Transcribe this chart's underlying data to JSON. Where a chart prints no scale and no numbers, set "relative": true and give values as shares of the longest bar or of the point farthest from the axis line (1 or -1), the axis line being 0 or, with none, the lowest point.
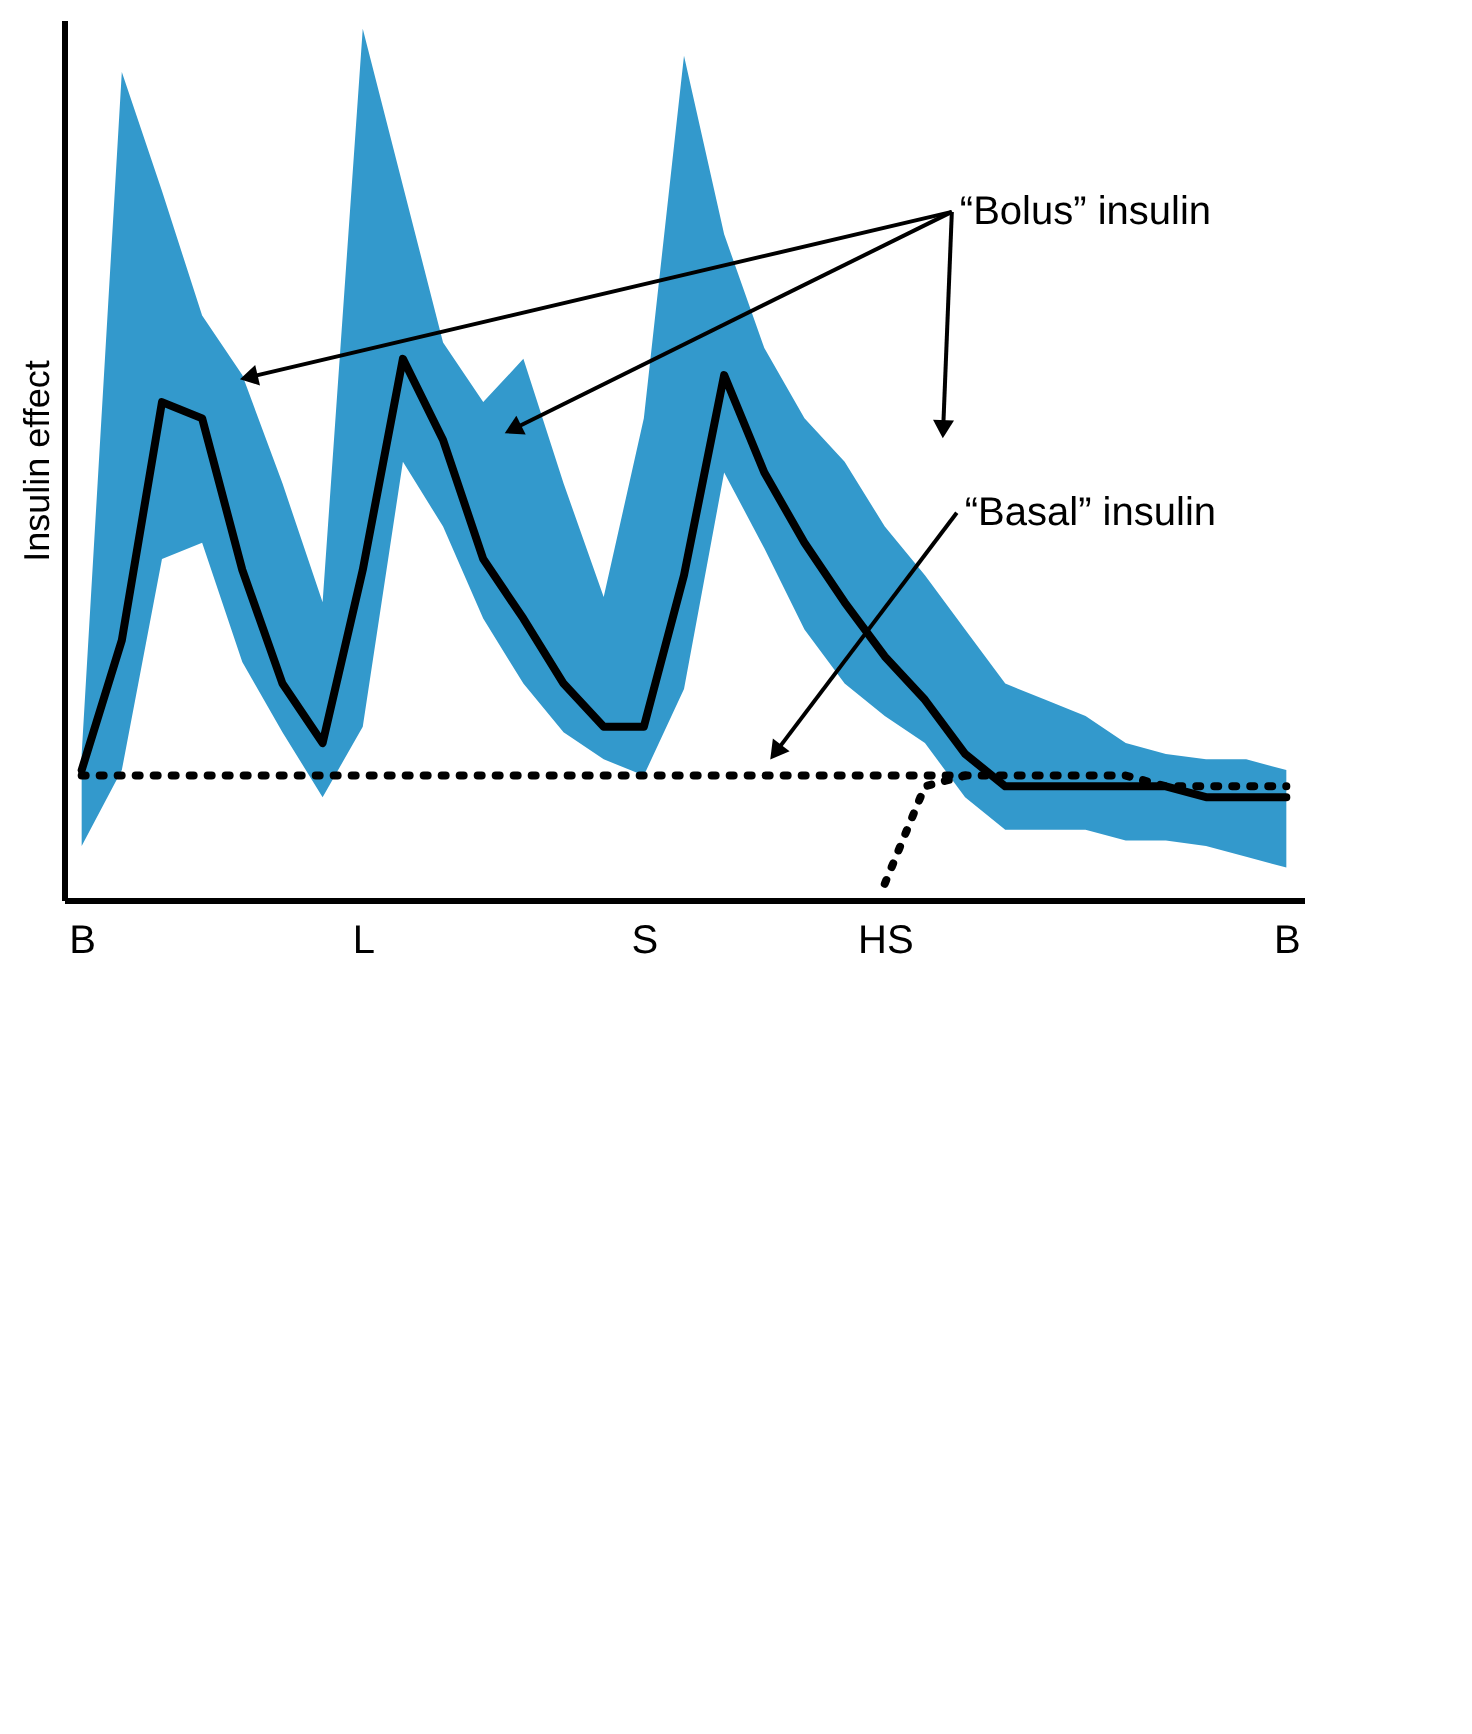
{
  "chart_data": {
    "type": "line",
    "relative": true,
    "ylabel": "Insulin effect",
    "categories": [
      "B",
      null,
      null,
      null,
      null,
      null,
      null,
      "L",
      null,
      null,
      null,
      null,
      null,
      null,
      "S",
      null,
      null,
      null,
      null,
      null,
      "HS",
      null,
      null,
      null,
      null,
      null,
      null,
      null,
      null,
      null,
      "B"
    ],
    "marker": "none",
    "series": [
      {
        "line_style": "solid",
        "color": "#000000",
        "values": [
          0.24,
          0.48,
          0.92,
          0.89,
          0.61,
          0.4,
          0.29,
          0.61,
          1.0,
          0.85,
          0.63,
          0.52,
          0.4,
          0.32,
          0.32,
          0.6,
          0.97,
          0.79,
          0.66,
          0.55,
          0.45,
          0.37,
          0.27,
          0.21,
          0.21,
          0.21,
          0.21,
          0.21,
          0.19,
          0.19,
          0.19
        ],
        "upper": [
          0.27,
          1.53,
          1.31,
          1.08,
          0.97,
          0.77,
          0.55,
          1.61,
          1.32,
          1.03,
          0.92,
          1.0,
          0.77,
          0.56,
          0.89,
          1.56,
          1.23,
          1.02,
          0.89,
          0.81,
          0.69,
          0.6,
          0.5,
          0.4,
          0.37,
          0.34,
          0.29,
          0.27,
          0.26,
          0.26,
          0.24
        ],
        "lower": [
          0.1,
          0.24,
          0.63,
          0.66,
          0.44,
          0.31,
          0.19,
          0.32,
          0.81,
          0.69,
          0.52,
          0.4,
          0.31,
          0.26,
          0.23,
          0.39,
          0.79,
          0.65,
          0.5,
          0.4,
          0.34,
          0.29,
          0.19,
          0.13,
          0.13,
          0.13,
          0.11,
          0.11,
          0.1,
          0.08,
          0.06
        ]
      },
      {
        "line_style": "dotted",
        "color": "#000000",
        "values": [
          0.23,
          0.23,
          0.23,
          0.23,
          0.23,
          0.23,
          0.23,
          0.23,
          0.23,
          0.23,
          0.23,
          0.23,
          0.23,
          0.23,
          0.23,
          0.23,
          0.23,
          0.23,
          0.23,
          0.23,
          0.23,
          0.23,
          0.23,
          0.23,
          0.23,
          0.23,
          0.23,
          0.21,
          0.21,
          0.21,
          0.21
        ]
      },
      {
        "line_style": "dotted",
        "color": "#000000",
        "values": [
          null,
          null,
          null,
          null,
          null,
          null,
          null,
          null,
          null,
          null,
          null,
          null,
          null,
          null,
          null,
          null,
          null,
          null,
          null,
          null,
          0.03,
          0.21,
          0.23,
          null,
          null,
          null,
          null,
          null,
          null,
          null,
          null
        ]
      }
    ],
    "annotations": [
      "“Bolus” insulin",
      "“Basal” insulin"
    ]
  }
}
